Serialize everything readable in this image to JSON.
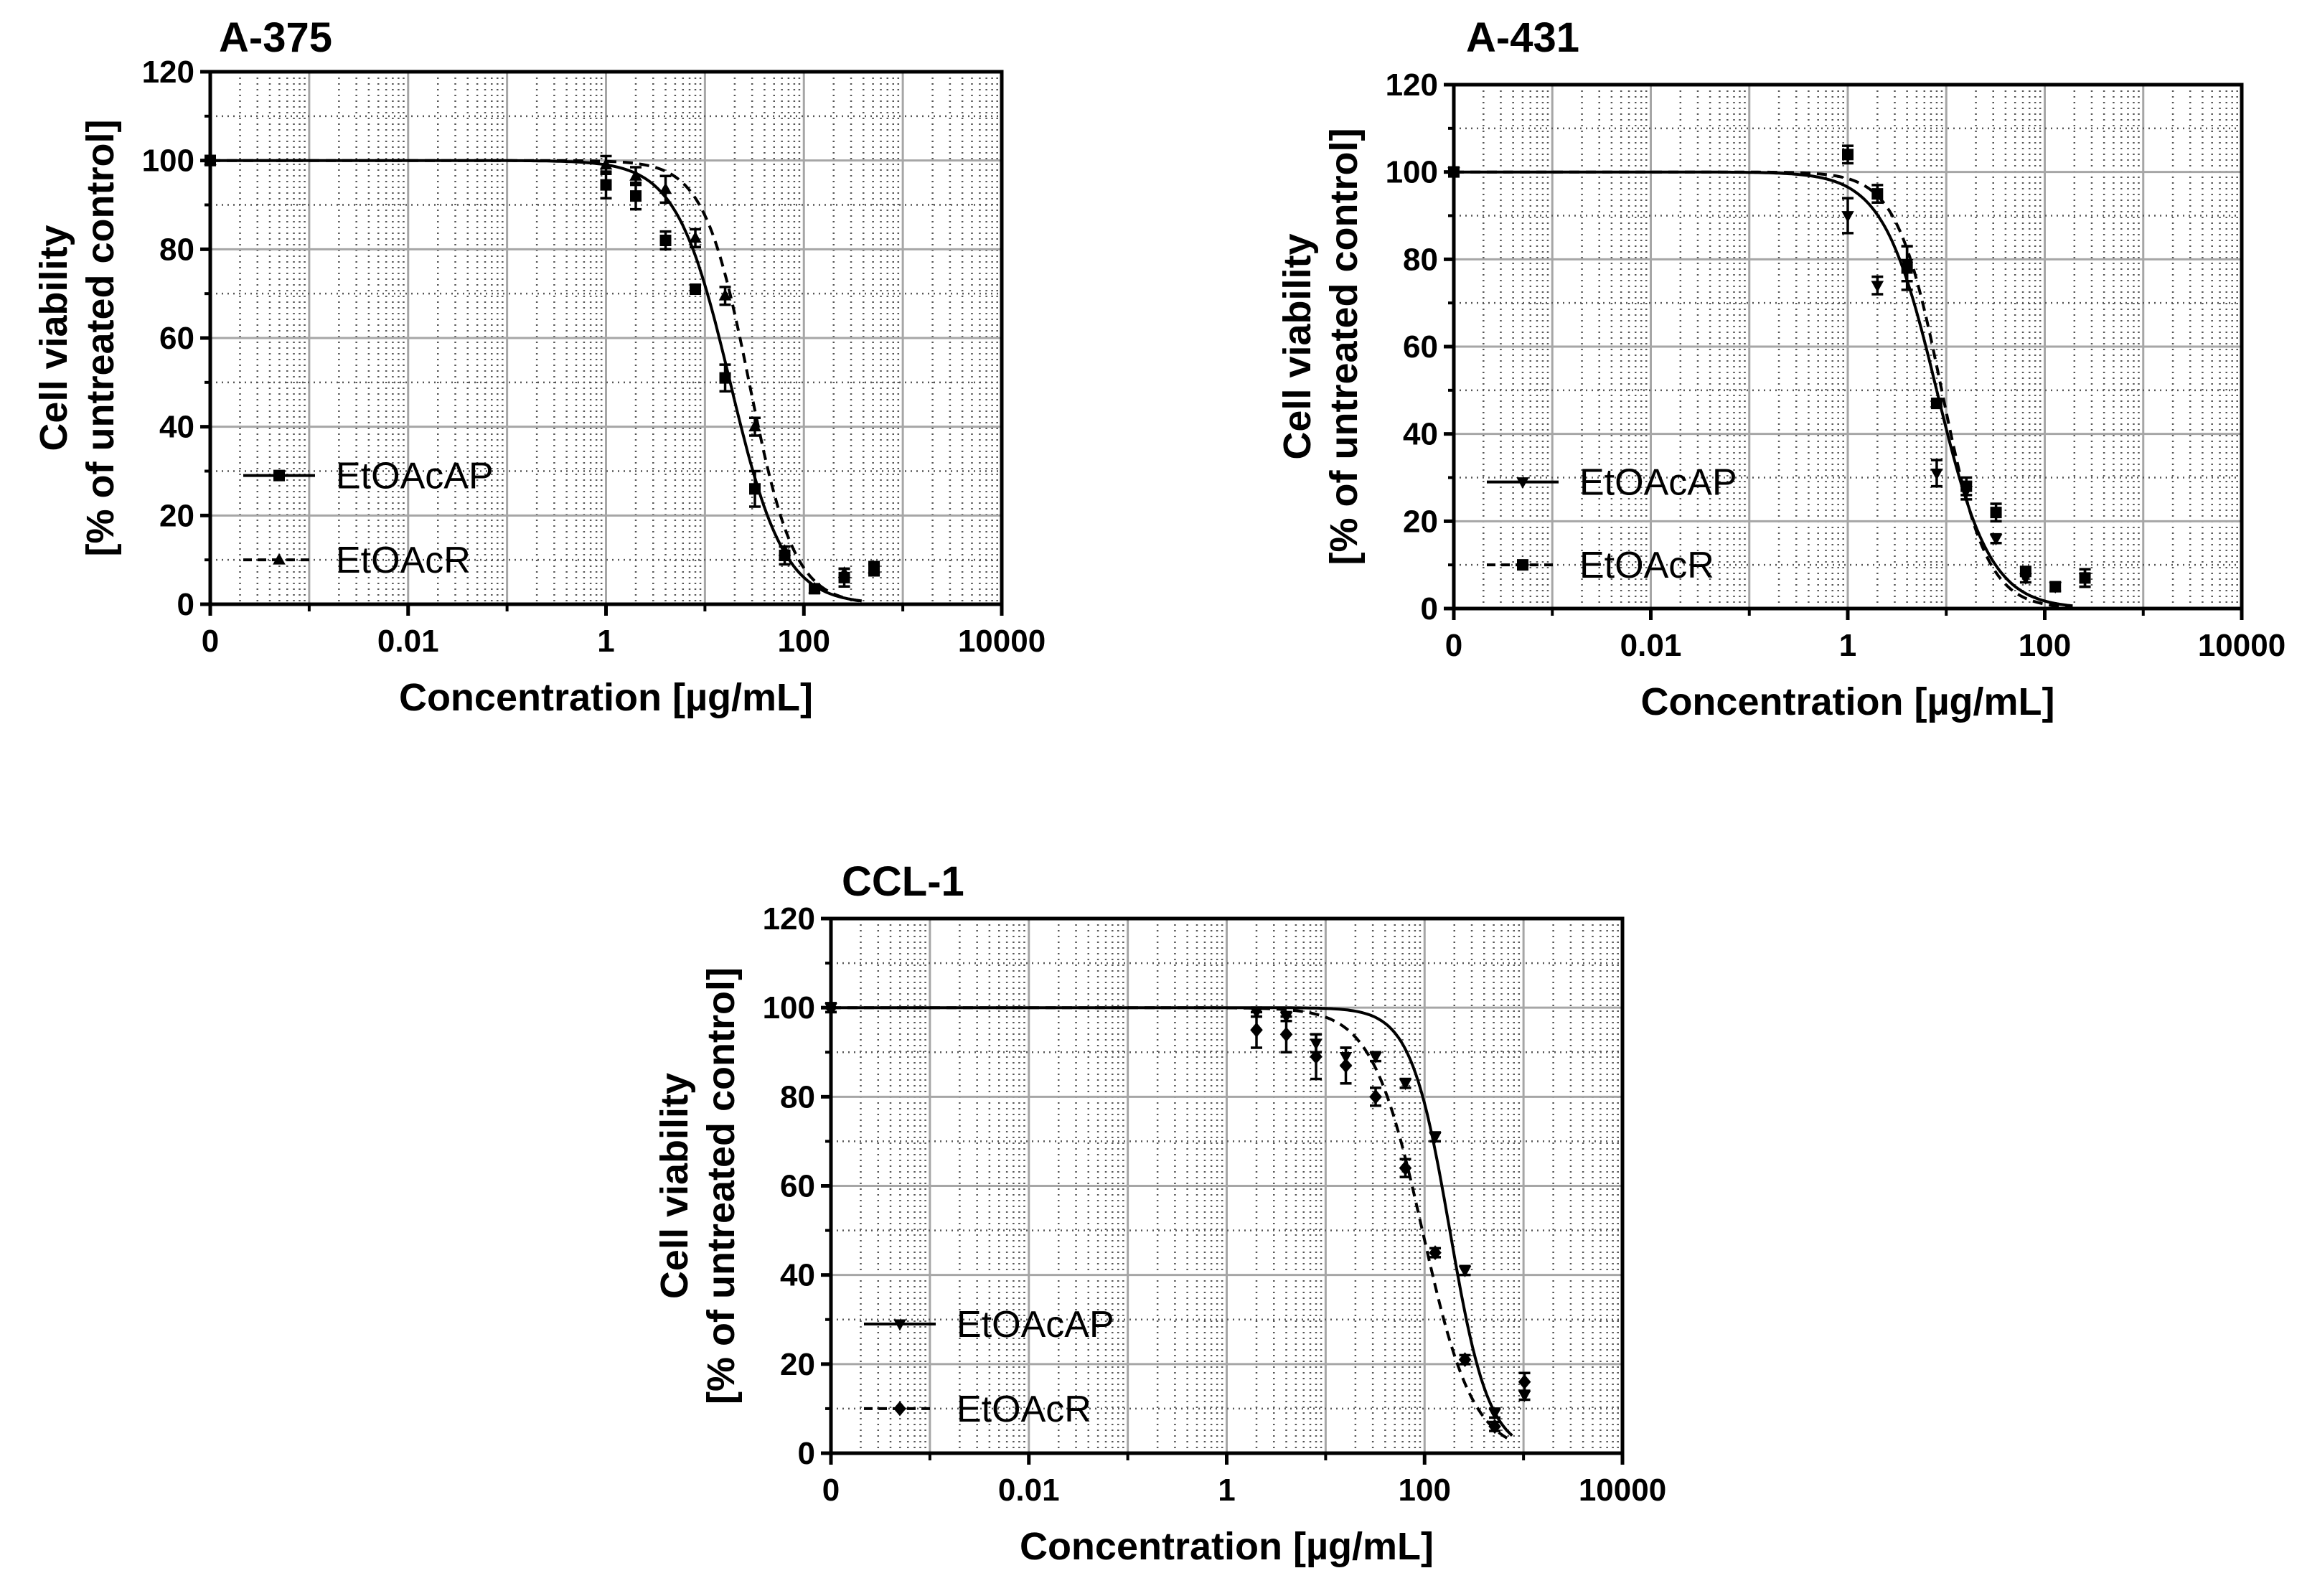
{
  "chart_data": [
    {
      "type": "scatter",
      "title": "A-375",
      "xlabel": "Concentration [µg/mL]",
      "ylabel_line1": "Cell viability",
      "ylabel_line2": "[% of untreated control]",
      "xscale": "log",
      "xlim": [
        0.0001,
        10000
      ],
      "ylim": [
        0,
        120
      ],
      "xtick_labels": [
        "0",
        "0.01",
        "1",
        "100",
        "10000"
      ],
      "ytick_labels": [
        "0",
        "20",
        "40",
        "60",
        "80",
        "100",
        "120"
      ],
      "grid": true,
      "legend_position": "left",
      "series": [
        {
          "name": "EtOAcAP",
          "marker": "square",
          "line": "solid",
          "ec50": 18,
          "hill": 1.6,
          "x": [
            0.0001,
            1,
            2,
            4,
            8,
            16,
            32,
            64,
            128,
            256,
            512
          ],
          "y": [
            100,
            94.5,
            92,
            82,
            71,
            51,
            26,
            11,
            3.5,
            6,
            8
          ],
          "err": [
            1,
            3,
            3,
            2,
            1,
            3,
            4,
            2,
            0.5,
            2,
            1.5
          ]
        },
        {
          "name": "EtOAcR",
          "marker": "triangle",
          "line": "dashed",
          "ec50": 28,
          "hill": 1.9,
          "x": [
            0.0001,
            1,
            2,
            4,
            8,
            16,
            32,
            64,
            128,
            256,
            512
          ],
          "y": [
            100,
            99,
            96.5,
            93.5,
            82.5,
            69.5,
            40,
            12,
            3.5,
            7,
            8
          ],
          "err": [
            1,
            2,
            2,
            3,
            2,
            2,
            2,
            1,
            0.5,
            1,
            1
          ]
        }
      ]
    },
    {
      "type": "scatter",
      "title": "A-431",
      "xlabel": "Concentration [µg/mL]",
      "ylabel_line1": "Cell viability",
      "ylabel_line2": "[% of untreated control]",
      "xscale": "log",
      "xlim": [
        0.0001,
        10000
      ],
      "ylim": [
        0,
        120
      ],
      "xtick_labels": [
        "0",
        "0.01",
        "1",
        "100",
        "10000"
      ],
      "ytick_labels": [
        "0",
        "20",
        "40",
        "60",
        "80",
        "100",
        "120"
      ],
      "grid": true,
      "legend_position": "left",
      "series": [
        {
          "name": "EtOAcAP",
          "marker": "triangle-down",
          "line": "solid",
          "ec50": 8,
          "hill": 1.6,
          "x": [
            0.0001,
            1,
            2,
            4,
            8,
            16,
            32,
            64,
            128,
            256
          ],
          "y": [
            100,
            90,
            74,
            79,
            31,
            27,
            16,
            7,
            5,
            7
          ],
          "err": [
            1,
            4,
            2,
            4,
            3,
            2,
            1,
            1,
            1,
            2
          ]
        },
        {
          "name": "EtOAcR",
          "marker": "square",
          "line": "dashed",
          "ec50": 9,
          "hill": 1.9,
          "x": [
            0.0001,
            1,
            2,
            4,
            8,
            16,
            32,
            64,
            128,
            256
          ],
          "y": [
            100,
            104,
            95,
            78,
            47,
            28,
            22,
            8.5,
            5,
            7
          ],
          "err": [
            1,
            2,
            2,
            5,
            1,
            2,
            2,
            1,
            0.5,
            2
          ]
        }
      ]
    },
    {
      "type": "scatter",
      "title": "CCL-1",
      "xlabel": "Concentration [µg/mL]",
      "ylabel_line1": "Cell viability",
      "ylabel_line2": "[% of untreated control]",
      "xscale": "log",
      "xlim": [
        0.0001,
        10000
      ],
      "ylim": [
        0,
        120
      ],
      "xtick_labels": [
        "0",
        "0.01",
        "1",
        "100",
        "10000"
      ],
      "ytick_labels": [
        "0",
        "20",
        "40",
        "60",
        "80",
        "100",
        "120"
      ],
      "grid": true,
      "legend_position": "left",
      "series": [
        {
          "name": "EtOAcAP",
          "marker": "triangle-down",
          "line": "solid",
          "ec50": 180,
          "hill": 2.2,
          "x": [
            0.0001,
            2,
            4,
            8,
            16,
            32,
            64,
            128,
            256,
            512,
            1024
          ],
          "y": [
            100,
            99,
            98,
            92,
            89,
            89,
            83,
            71,
            41,
            9,
            13
          ],
          "err": [
            1,
            1,
            1,
            2,
            2,
            1,
            1,
            1,
            1,
            1,
            1
          ]
        },
        {
          "name": "EtOAcR",
          "marker": "diamond",
          "line": "dashed",
          "ec50": 95,
          "hill": 1.7,
          "x": [
            0.0001,
            2,
            4,
            8,
            16,
            32,
            64,
            128,
            256,
            512,
            1024
          ],
          "y": [
            100,
            95,
            94,
            89,
            87,
            80,
            64,
            45,
            21,
            6,
            16
          ],
          "err": [
            1,
            4,
            4,
            5,
            4,
            2,
            2,
            1,
            1,
            1,
            2
          ]
        }
      ]
    }
  ]
}
